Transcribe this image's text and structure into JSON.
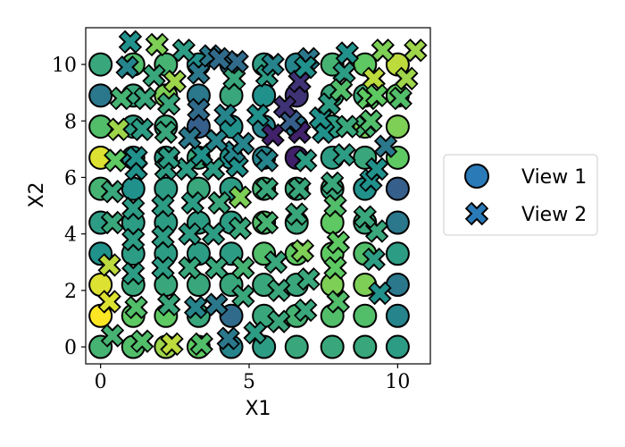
{
  "chart_data": {
    "type": "scatter",
    "xlabel": "X1",
    "ylabel": "X2",
    "xlim": [
      -0.5,
      11.1
    ],
    "ylim": [
      -0.6,
      11.3
    ],
    "x_ticks": [
      0,
      5,
      10
    ],
    "y_ticks": [
      0,
      2,
      4,
      6,
      8,
      10
    ],
    "grid": false,
    "colormap": "viridis",
    "legend_position": "right",
    "legend_entries": [
      "View 1",
      "View 2"
    ],
    "series": [
      {
        "name": "View 1",
        "marker": "circle",
        "legend_color": "#2a7ab8",
        "points": [
          [
            0,
            0,
            0.65
          ],
          [
            1.1,
            0,
            0.7
          ],
          [
            2.2,
            0,
            0.85
          ],
          [
            3.3,
            0,
            0.75
          ],
          [
            4.4,
            0,
            0.45
          ],
          [
            5.5,
            0,
            0.55
          ],
          [
            6.6,
            0,
            0.6
          ],
          [
            7.8,
            0,
            0.6
          ],
          [
            8.9,
            0,
            0.6
          ],
          [
            10,
            0,
            0.55
          ],
          [
            0,
            1.1,
            1.0
          ],
          [
            1.1,
            1.1,
            0.75
          ],
          [
            2.2,
            1.1,
            0.75
          ],
          [
            3.3,
            1.1,
            0.6
          ],
          [
            4.4,
            1.1,
            0.35
          ],
          [
            5.5,
            1.1,
            0.6
          ],
          [
            6.6,
            1.1,
            0.65
          ],
          [
            7.8,
            1.1,
            0.7
          ],
          [
            8.9,
            1.1,
            0.7
          ],
          [
            10,
            1.1,
            0.45
          ],
          [
            0,
            2.2,
            0.95
          ],
          [
            1.1,
            2.2,
            0.6
          ],
          [
            2.2,
            2.2,
            0.6
          ],
          [
            3.3,
            2.2,
            0.6
          ],
          [
            4.4,
            2.2,
            0.6
          ],
          [
            5.5,
            2.2,
            0.6
          ],
          [
            6.6,
            2.2,
            0.6
          ],
          [
            7.8,
            2.2,
            0.8
          ],
          [
            8.9,
            2.2,
            0.8
          ],
          [
            10,
            2.2,
            0.4
          ],
          [
            0,
            3.3,
            0.5
          ],
          [
            1.1,
            3.3,
            0.55
          ],
          [
            2.2,
            3.3,
            0.55
          ],
          [
            3.3,
            3.3,
            0.55
          ],
          [
            4.4,
            3.3,
            0.55
          ],
          [
            5.5,
            3.3,
            0.7
          ],
          [
            6.6,
            3.3,
            0.75
          ],
          [
            7.8,
            3.3,
            0.75
          ],
          [
            8.9,
            3.3,
            0.7
          ],
          [
            10,
            3.3,
            0.55
          ],
          [
            0,
            4.4,
            0.55
          ],
          [
            1.1,
            4.4,
            0.55
          ],
          [
            2.2,
            4.4,
            0.55
          ],
          [
            3.3,
            4.4,
            0.55
          ],
          [
            4.4,
            4.4,
            0.55
          ],
          [
            5.5,
            4.4,
            0.7
          ],
          [
            6.6,
            4.4,
            0.6
          ],
          [
            7.8,
            4.4,
            0.75
          ],
          [
            8.9,
            4.4,
            0.6
          ],
          [
            10,
            4.4,
            0.4
          ],
          [
            0,
            5.6,
            0.65
          ],
          [
            1.1,
            5.6,
            0.5
          ],
          [
            2.2,
            5.6,
            0.55
          ],
          [
            3.3,
            5.6,
            0.6
          ],
          [
            4.4,
            5.6,
            0.55
          ],
          [
            5.5,
            5.6,
            0.65
          ],
          [
            6.6,
            5.6,
            0.6
          ],
          [
            7.8,
            5.6,
            0.6
          ],
          [
            8.9,
            5.6,
            0.5
          ],
          [
            10,
            5.6,
            0.3
          ],
          [
            0,
            6.7,
            0.95
          ],
          [
            1.1,
            6.7,
            0.5
          ],
          [
            2.2,
            6.7,
            0.55
          ],
          [
            3.3,
            6.7,
            0.6
          ],
          [
            4.4,
            6.7,
            0.5
          ],
          [
            5.5,
            6.7,
            0.45
          ],
          [
            6.6,
            6.7,
            0.1
          ],
          [
            7.8,
            6.7,
            0.55
          ],
          [
            8.9,
            6.7,
            0.6
          ],
          [
            10,
            6.7,
            0.75
          ],
          [
            0,
            7.8,
            0.7
          ],
          [
            1.1,
            7.8,
            0.55
          ],
          [
            2.2,
            7.8,
            0.6
          ],
          [
            3.3,
            7.8,
            0.3
          ],
          [
            4.4,
            7.8,
            0.5
          ],
          [
            5.5,
            7.8,
            0.45
          ],
          [
            6.6,
            7.8,
            0.4
          ],
          [
            7.8,
            7.8,
            0.55
          ],
          [
            8.9,
            7.8,
            0.8
          ],
          [
            10,
            7.8,
            0.8
          ],
          [
            0,
            8.9,
            0.4
          ],
          [
            1.1,
            8.9,
            0.6
          ],
          [
            2.2,
            8.9,
            0.8
          ],
          [
            3.3,
            8.9,
            0.4
          ],
          [
            4.4,
            8.9,
            0.6
          ],
          [
            5.5,
            8.9,
            0.5
          ],
          [
            6.6,
            8.9,
            0.15
          ],
          [
            7.8,
            8.9,
            0.6
          ],
          [
            8.9,
            8.9,
            0.6
          ],
          [
            10,
            8.9,
            0.75
          ],
          [
            0,
            10,
            0.6
          ],
          [
            1.1,
            10,
            0.7
          ],
          [
            2.2,
            10,
            0.65
          ],
          [
            3.3,
            10,
            0.5
          ],
          [
            4.4,
            10,
            0.4
          ],
          [
            5.5,
            10,
            0.55
          ],
          [
            6.6,
            10,
            0.45
          ],
          [
            7.8,
            10,
            0.65
          ],
          [
            8.9,
            10,
            0.75
          ],
          [
            10,
            10,
            0.9
          ]
        ]
      },
      {
        "name": "View 2",
        "marker": "x",
        "legend_color": "#2a7ab8",
        "points": [
          [
            0.4,
            0.4,
            0.65
          ],
          [
            1.4,
            0.2,
            0.7
          ],
          [
            2.4,
            0.1,
            0.9
          ],
          [
            3.4,
            0.1,
            0.7
          ],
          [
            4.3,
            0.3,
            0.4
          ],
          [
            5.2,
            0.5,
            0.55
          ],
          [
            6.0,
            0.9,
            0.6
          ],
          [
            6.9,
            1.3,
            0.6
          ],
          [
            8.0,
            1.6,
            0.7
          ],
          [
            9.4,
            1.9,
            0.5
          ],
          [
            0.3,
            1.6,
            0.95
          ],
          [
            1.2,
            1.4,
            0.7
          ],
          [
            2.3,
            1.5,
            0.6
          ],
          [
            3.2,
            1.4,
            0.45
          ],
          [
            3.9,
            1.5,
            0.4
          ],
          [
            4.8,
            1.8,
            0.6
          ],
          [
            6.0,
            2.0,
            0.6
          ],
          [
            7.0,
            2.4,
            0.6
          ],
          [
            7.9,
            2.8,
            0.75
          ],
          [
            9.2,
            3.1,
            0.55
          ],
          [
            0.3,
            2.9,
            0.9
          ],
          [
            1.1,
            2.6,
            0.55
          ],
          [
            2.1,
            2.8,
            0.55
          ],
          [
            3.0,
            2.8,
            0.6
          ],
          [
            3.9,
            2.8,
            0.6
          ],
          [
            4.8,
            2.8,
            0.65
          ],
          [
            5.9,
            3.0,
            0.6
          ],
          [
            6.8,
            3.4,
            0.8
          ],
          [
            8.0,
            3.7,
            0.75
          ],
          [
            9.3,
            4.1,
            0.6
          ],
          [
            1.1,
            3.8,
            0.55
          ],
          [
            2.1,
            3.9,
            0.55
          ],
          [
            3.0,
            4.0,
            0.55
          ],
          [
            3.8,
            4.0,
            0.55
          ],
          [
            4.7,
            4.2,
            0.6
          ],
          [
            5.6,
            4.4,
            0.65
          ],
          [
            6.6,
            4.7,
            0.6
          ],
          [
            7.9,
            5.0,
            0.7
          ],
          [
            8.9,
            4.6,
            0.6
          ],
          [
            0.4,
            4.4,
            0.6
          ],
          [
            1.1,
            4.9,
            0.55
          ],
          [
            2.1,
            5.0,
            0.55
          ],
          [
            3.1,
            5.1,
            0.55
          ],
          [
            4.0,
            5.1,
            0.6
          ],
          [
            4.7,
            5.3,
            0.8
          ],
          [
            5.6,
            5.6,
            0.6
          ],
          [
            6.7,
            5.6,
            0.6
          ],
          [
            7.8,
            5.8,
            0.6
          ],
          [
            9.1,
            5.9,
            0.5
          ],
          [
            0.4,
            5.5,
            0.6
          ],
          [
            1.2,
            6.3,
            0.5
          ],
          [
            2.2,
            6.3,
            0.55
          ],
          [
            2.9,
            6.3,
            0.55
          ],
          [
            3.8,
            6.3,
            0.55
          ],
          [
            4.6,
            6.4,
            0.5
          ],
          [
            5.6,
            6.6,
            0.45
          ],
          [
            6.9,
            6.6,
            0.55
          ],
          [
            8.2,
            6.8,
            0.55
          ],
          [
            9.3,
            6.3,
            0.5
          ],
          [
            0.5,
            6.6,
            0.75
          ],
          [
            1.2,
            6.7,
            0.5
          ],
          [
            2.3,
            6.7,
            0.55
          ],
          [
            3.4,
            6.8,
            0.5
          ],
          [
            4.5,
            6.9,
            0.45
          ],
          [
            5.8,
            7.5,
            0.1
          ],
          [
            6.7,
            7.6,
            0.1
          ],
          [
            7.5,
            7.6,
            0.5
          ],
          [
            8.9,
            7.8,
            0.65
          ],
          [
            9.6,
            7.1,
            0.4
          ],
          [
            0.6,
            7.7,
            0.85
          ],
          [
            1.4,
            7.7,
            0.55
          ],
          [
            2.2,
            7.6,
            0.6
          ],
          [
            3.0,
            7.4,
            0.4
          ],
          [
            3.9,
            7.3,
            0.45
          ],
          [
            4.8,
            7.2,
            0.45
          ],
          [
            6.4,
            8.0,
            0.3
          ],
          [
            7.4,
            8.1,
            0.5
          ],
          [
            8.3,
            7.8,
            0.6
          ],
          [
            9.1,
            8.0,
            0.7
          ],
          [
            0.7,
            8.8,
            0.65
          ],
          [
            1.5,
            8.8,
            0.6
          ],
          [
            2.3,
            8.6,
            0.6
          ],
          [
            3.3,
            8.4,
            0.35
          ],
          [
            4.2,
            8.2,
            0.45
          ],
          [
            5.3,
            8.2,
            0.5
          ],
          [
            6.2,
            8.5,
            0.15
          ],
          [
            7.7,
            8.6,
            0.55
          ],
          [
            9.0,
            8.8,
            0.75
          ],
          [
            10.1,
            8.8,
            0.7
          ],
          [
            0.9,
            9.9,
            0.45
          ],
          [
            1.8,
            9.6,
            0.6
          ],
          [
            2.5,
            9.4,
            0.85
          ],
          [
            3.3,
            9.7,
            0.4
          ],
          [
            4.5,
            9.5,
            0.6
          ],
          [
            5.6,
            9.6,
            0.55
          ],
          [
            6.7,
            9.4,
            0.15
          ],
          [
            8.2,
            9.7,
            0.55
          ],
          [
            9.2,
            9.5,
            0.9
          ],
          [
            10.3,
            9.5,
            0.85
          ],
          [
            1.0,
            10.8,
            0.5
          ],
          [
            1.9,
            10.7,
            0.8
          ],
          [
            2.8,
            10.5,
            0.55
          ],
          [
            3.7,
            10.3,
            0.4
          ],
          [
            4.6,
            10.1,
            0.35
          ],
          [
            5.8,
            10.0,
            0.45
          ],
          [
            7.0,
            10.2,
            0.4
          ],
          [
            8.3,
            10.4,
            0.5
          ],
          [
            9.5,
            10.5,
            0.8
          ],
          [
            10.6,
            10.5,
            0.85
          ],
          [
            4.0,
            10.2,
            0.35
          ],
          [
            6.9,
            9.9,
            0.5
          ],
          [
            8.1,
            9.1,
            0.7
          ],
          [
            9.3,
            8.9,
            0.75
          ]
        ]
      }
    ]
  }
}
